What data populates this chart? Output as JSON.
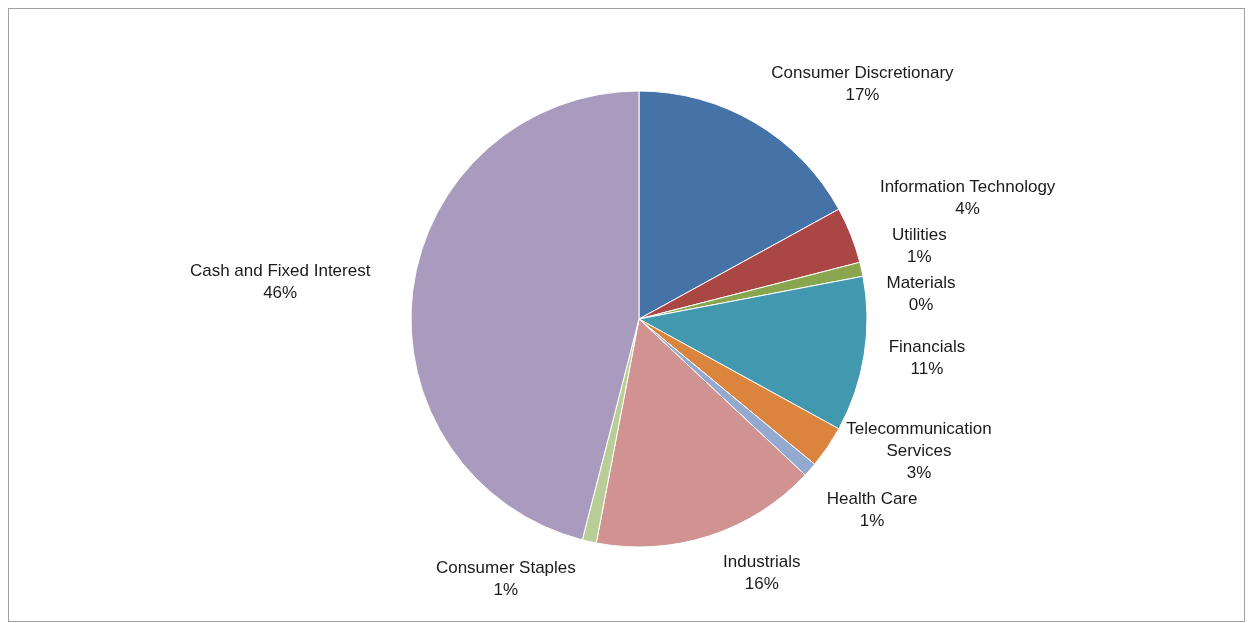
{
  "chart_data": {
    "type": "pie",
    "categories": [
      "Consumer Discretionary",
      "Information Technology",
      "Utilities",
      "Materials",
      "Financials",
      "Telecommunication Services",
      "Health Care",
      "Industrials",
      "Consumer Staples",
      "Cash and Fixed Interest"
    ],
    "values": [
      17,
      4,
      1,
      0,
      11,
      3,
      1,
      16,
      1,
      46
    ],
    "colors": [
      "#4572a7",
      "#aa4643",
      "#89a54e",
      "#71588f",
      "#4198af",
      "#db843d",
      "#93a9cf",
      "#d19392",
      "#b9cd96",
      "#a99bbd"
    ],
    "value_labels": [
      "17%",
      "4%",
      "1%",
      "0%",
      "11%",
      "3%",
      "1%",
      "16%",
      "1%",
      "46%"
    ],
    "legend": false
  }
}
